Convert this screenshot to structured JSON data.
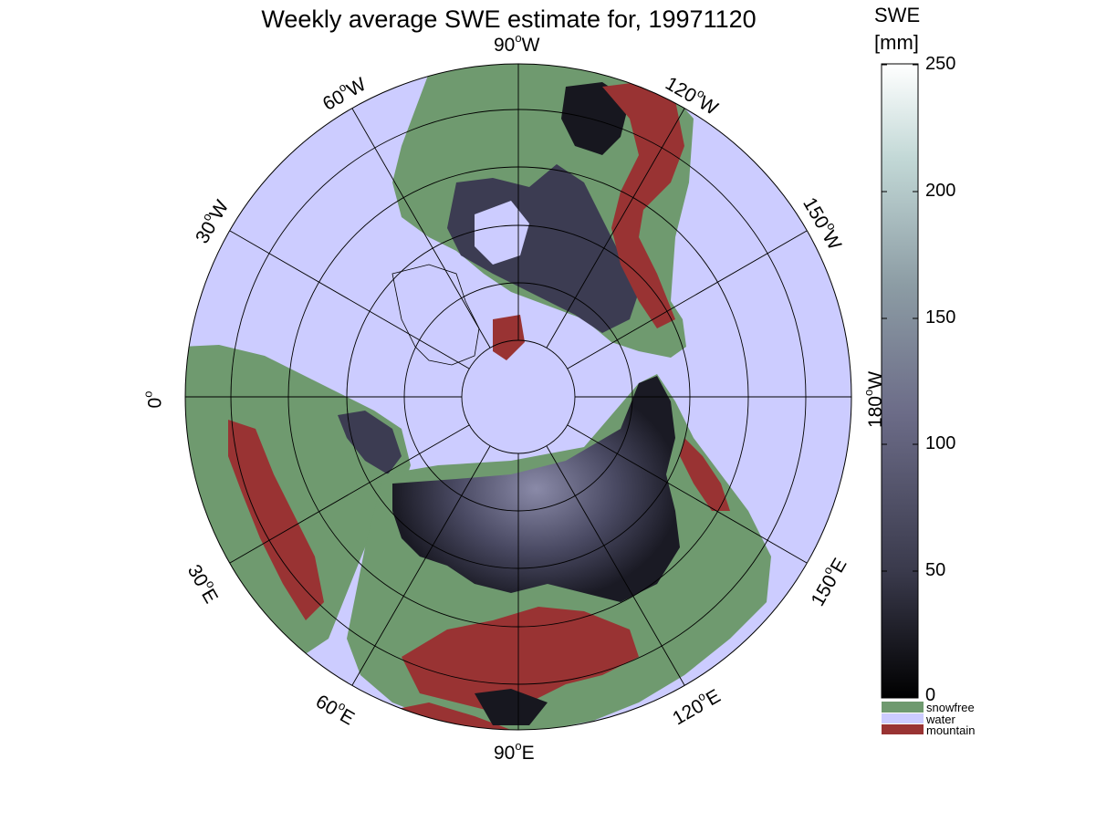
{
  "title": "Weekly average SWE estimate for, 19971120",
  "colorbar": {
    "title_line1": "SWE",
    "title_line2": "[mm]",
    "ticks": [
      {
        "label": "250",
        "value": 250
      },
      {
        "label": "200",
        "value": 200
      },
      {
        "label": "150",
        "value": 150
      },
      {
        "label": "100",
        "value": 100
      },
      {
        "label": "50",
        "value": 50
      },
      {
        "label": "0",
        "value": 0
      }
    ],
    "range": [
      0,
      250
    ],
    "gradient_dark": "#000000",
    "gradient_light": "#ffffff"
  },
  "legend": [
    {
      "label": "snowfree",
      "color": "#6f9a6f"
    },
    {
      "label": "water",
      "color": "#ccccff"
    },
    {
      "label": "mountain",
      "color": "#993333"
    }
  ],
  "longitude_labels": {
    "w90": {
      "num": "90",
      "deg": "o",
      "dir": "W"
    },
    "w60": {
      "num": "60",
      "deg": "o",
      "dir": "W"
    },
    "w30": {
      "num": "30",
      "deg": "o",
      "dir": "W"
    },
    "e0": {
      "num": "0",
      "deg": "o",
      "dir": ""
    },
    "e30": {
      "num": "30",
      "deg": "o",
      "dir": "E"
    },
    "e60": {
      "num": "60",
      "deg": "o",
      "dir": "E"
    },
    "e90": {
      "num": "90",
      "deg": "o",
      "dir": "E"
    },
    "e120": {
      "num": "120",
      "deg": "o",
      "dir": "E"
    },
    "e150": {
      "num": "150",
      "deg": "o",
      "dir": "E"
    },
    "w180": {
      "num": "180",
      "deg": "o",
      "dir": "W"
    },
    "w150": {
      "num": "150",
      "deg": "o",
      "dir": "W"
    },
    "w120": {
      "num": "120",
      "deg": "o",
      "dir": "W"
    }
  },
  "colors": {
    "water": "#ccccff",
    "land": "#6f9a6f",
    "mountain": "#993333",
    "snow_low": "#1a1a24",
    "snow_mid": "#4a4a63",
    "snow_high": "#8a8aa8"
  }
}
